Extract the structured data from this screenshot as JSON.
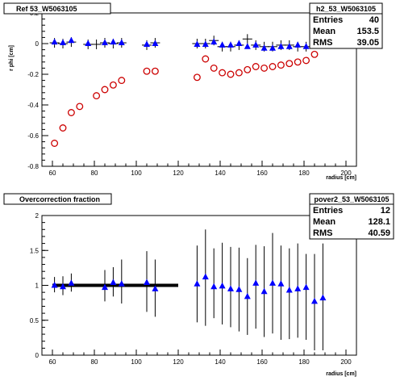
{
  "chart_data": [
    {
      "type": "scatter",
      "title": "Ref 53_W5063105",
      "xlabel": "radius [cm]",
      "ylabel": "r phi [cm]",
      "xlim": [
        55,
        205
      ],
      "ylim": [
        -0.8,
        0.2
      ],
      "xticks": [
        60,
        80,
        100,
        120,
        140,
        160,
        180,
        200
      ],
      "yticks": [
        -0.8,
        -0.6,
        -0.4,
        -0.2,
        0,
        0.2
      ],
      "stats": {
        "name": "h2_53_W5063105",
        "rows": [
          {
            "label": "Entries",
            "value": "40"
          },
          {
            "label": "Mean",
            "value": "153.5"
          },
          {
            "label": "RMS",
            "value": "39.05"
          }
        ]
      },
      "series": [
        {
          "marker": "cross",
          "color": "#000000",
          "x": [
            61,
            65,
            69,
            77,
            81,
            85,
            89,
            93,
            105,
            109,
            129,
            133,
            137,
            141,
            145,
            149,
            153,
            157,
            161,
            165,
            169,
            173,
            177,
            181,
            185,
            189
          ],
          "y": [
            0.005,
            0.0,
            0.01,
            -0.005,
            -0.005,
            0.005,
            0.0,
            0.005,
            -0.01,
            0.005,
            0.0,
            0.0,
            0.02,
            -0.02,
            -0.02,
            -0.01,
            0.03,
            -0.01,
            -0.02,
            -0.02,
            -0.01,
            -0.01,
            -0.02,
            -0.02,
            0.01,
            0.13
          ]
        },
        {
          "marker": "triangle",
          "color": "#0000ff",
          "x": [
            61,
            65,
            69,
            77,
            85,
            89,
            93,
            105,
            109,
            129,
            133,
            137,
            141,
            145,
            149,
            153,
            157,
            161,
            165,
            169,
            173,
            177,
            181,
            185,
            189
          ],
          "y": [
            0.01,
            0.005,
            0.02,
            0.0,
            0.005,
            0.01,
            0.005,
            -0.005,
            0.0,
            -0.005,
            -0.005,
            0.01,
            -0.01,
            -0.01,
            0.0,
            -0.02,
            -0.01,
            -0.03,
            -0.03,
            -0.02,
            -0.02,
            -0.01,
            -0.02,
            0.02,
            0.1
          ]
        },
        {
          "marker": "circle-open",
          "color": "#cc0000",
          "x": [
            61,
            65,
            69,
            73,
            81,
            85,
            89,
            93,
            105,
            109,
            129,
            133,
            137,
            141,
            145,
            149,
            153,
            157,
            161,
            165,
            169,
            173,
            177,
            181,
            185,
            189
          ],
          "y": [
            -0.65,
            -0.55,
            -0.45,
            -0.41,
            -0.34,
            -0.3,
            -0.27,
            -0.24,
            -0.18,
            -0.18,
            -0.22,
            -0.1,
            -0.16,
            -0.19,
            -0.2,
            -0.19,
            -0.17,
            -0.15,
            -0.16,
            -0.15,
            -0.14,
            -0.13,
            -0.12,
            -0.11,
            -0.07,
            0.01
          ]
        }
      ]
    },
    {
      "type": "scatter",
      "title": "Overcorrection fraction",
      "xlabel": "radius [cm]",
      "ylabel": "",
      "xlim": [
        55,
        205
      ],
      "ylim": [
        0,
        2
      ],
      "xticks": [
        60,
        80,
        100,
        120,
        140,
        160,
        180,
        200
      ],
      "yticks": [
        0,
        0.5,
        1,
        1.5,
        2
      ],
      "stats": {
        "name": "pover2_53_W5063105",
        "rows": [
          {
            "label": "Entries",
            "value": "12"
          },
          {
            "label": "Mean",
            "value": "128.1"
          },
          {
            "label": "RMS",
            "value": "40.59"
          }
        ]
      },
      "reference_line": {
        "x": [
          60,
          120
        ],
        "y": 1.0
      },
      "series": [
        {
          "marker": "triangle",
          "color": "#0000ff",
          "x": [
            61,
            65,
            69,
            85,
            89,
            93,
            105,
            109,
            129,
            133,
            137,
            141,
            145,
            149,
            153,
            157,
            161,
            165,
            169,
            173,
            177,
            181,
            185,
            189
          ],
          "y": [
            1.0,
            0.98,
            1.03,
            0.97,
            1.04,
            1.02,
            1.04,
            0.95,
            1.02,
            1.12,
            0.98,
            0.99,
            0.95,
            0.94,
            0.84,
            1.03,
            0.91,
            1.03,
            1.02,
            0.93,
            0.95,
            0.97,
            0.77,
            0.82
          ],
          "error_low": [
            0.1,
            0.12,
            0.12,
            0.2,
            0.2,
            0.28,
            0.42,
            0.4,
            0.55,
            0.7,
            0.45,
            0.55,
            0.55,
            0.6,
            0.55,
            0.65,
            0.65,
            0.72,
            0.8,
            0.7,
            0.7,
            0.75,
            0.7,
            0.75
          ],
          "error_high": [
            0.12,
            0.15,
            0.14,
            0.25,
            0.22,
            0.35,
            0.45,
            0.42,
            0.55,
            0.68,
            0.55,
            0.62,
            0.6,
            0.6,
            0.55,
            0.55,
            0.65,
            0.72,
            0.55,
            0.6,
            0.65,
            0.48,
            0.68,
            0.78
          ]
        }
      ]
    }
  ]
}
